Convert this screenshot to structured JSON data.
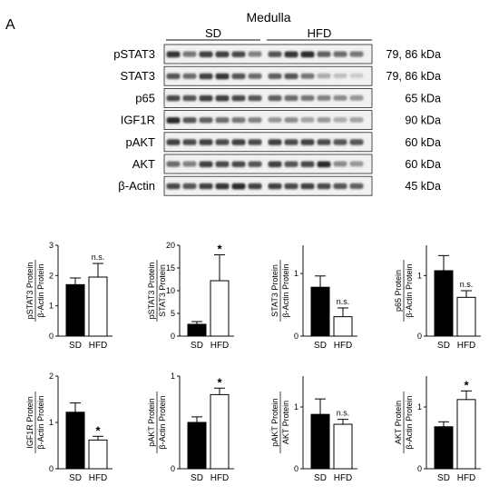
{
  "panel_label": "A",
  "blot": {
    "title": "Medulla",
    "groups": [
      "SD",
      "HFD"
    ],
    "rows": [
      {
        "protein": "pSTAT3",
        "kda": "79, 86 kDa",
        "sd": [
          0.85,
          0.55,
          0.8,
          0.8,
          0.75,
          0.5
        ],
        "hfd": [
          0.7,
          0.85,
          0.9,
          0.65,
          0.6,
          0.55
        ]
      },
      {
        "protein": "STAT3",
        "kda": "79, 86 kDa",
        "sd": [
          0.7,
          0.6,
          0.8,
          0.85,
          0.7,
          0.6
        ],
        "hfd": [
          0.65,
          0.7,
          0.55,
          0.3,
          0.2,
          0.15
        ]
      },
      {
        "protein": "p65",
        "kda": "65 kDa",
        "sd": [
          0.75,
          0.7,
          0.8,
          0.8,
          0.75,
          0.7
        ],
        "hfd": [
          0.65,
          0.6,
          0.55,
          0.5,
          0.45,
          0.4
        ]
      },
      {
        "protein": "IGF1R",
        "kda": "90 kDa",
        "sd": [
          0.9,
          0.7,
          0.65,
          0.6,
          0.55,
          0.5
        ],
        "hfd": [
          0.4,
          0.45,
          0.35,
          0.4,
          0.3,
          0.35
        ]
      },
      {
        "protein": "pAKT",
        "kda": "60 kDa",
        "sd": [
          0.8,
          0.75,
          0.8,
          0.75,
          0.8,
          0.75
        ],
        "hfd": [
          0.8,
          0.75,
          0.8,
          0.75,
          0.7,
          0.7
        ]
      },
      {
        "protein": "AKT",
        "kda": "60 kDa",
        "sd": [
          0.6,
          0.5,
          0.8,
          0.75,
          0.75,
          0.7
        ],
        "hfd": [
          0.8,
          0.7,
          0.75,
          0.9,
          0.45,
          0.4
        ]
      },
      {
        "protein": "β-Actin",
        "kda": "45 kDa",
        "sd": [
          0.75,
          0.7,
          0.8,
          0.85,
          0.9,
          0.8
        ],
        "hfd": [
          0.8,
          0.75,
          0.8,
          0.75,
          0.7,
          0.65
        ]
      }
    ]
  },
  "chart_data": [
    {
      "type": "bar",
      "ylabel_top": "pSTAT3 Protein",
      "ylabel_bottom": "β-Actin Protein",
      "categories": [
        "SD",
        "HFD"
      ],
      "values": [
        1.7,
        1.95
      ],
      "errors": [
        0.22,
        0.45
      ],
      "ylim": [
        0,
        3
      ],
      "yticks": [
        0,
        1,
        2,
        3
      ],
      "annotations": [
        "",
        "n.s."
      ]
    },
    {
      "type": "bar",
      "ylabel_top": "pSTAT3 Protein",
      "ylabel_bottom": "STAT3 Protein",
      "categories": [
        "SD",
        "HFD"
      ],
      "values": [
        2.6,
        12.2
      ],
      "errors": [
        0.6,
        5.7
      ],
      "ylim": [
        0,
        20
      ],
      "yticks": [
        0,
        5,
        10,
        15,
        20
      ],
      "annotations": [
        "",
        "*"
      ]
    },
    {
      "type": "bar",
      "ylabel_top": "STAT3 Protein",
      "ylabel_bottom": "β-Actin Protein",
      "categories": [
        "SD",
        "HFD"
      ],
      "values": [
        0.78,
        0.31
      ],
      "errors": [
        0.18,
        0.14
      ],
      "ylim": [
        0,
        1.45
      ],
      "yticks": [
        0,
        1
      ],
      "annotations": [
        "",
        "n.s."
      ]
    },
    {
      "type": "bar",
      "ylabel_top": "p65 Protein",
      "ylabel_bottom": "β-Actin Protein",
      "categories": [
        "SD",
        "HFD"
      ],
      "values": [
        1.08,
        0.64
      ],
      "errors": [
        0.25,
        0.11
      ],
      "ylim": [
        0,
        1.5
      ],
      "yticks": [
        0,
        1
      ],
      "annotations": [
        "",
        "n.s."
      ]
    },
    {
      "type": "bar",
      "ylabel_top": "IGF1R Protein",
      "ylabel_bottom": "β-Actin Protein",
      "categories": [
        "SD",
        "HFD"
      ],
      "values": [
        1.22,
        0.62
      ],
      "errors": [
        0.2,
        0.08
      ],
      "ylim": [
        0,
        2
      ],
      "yticks": [
        0,
        1,
        2
      ],
      "annotations": [
        "",
        "*"
      ]
    },
    {
      "type": "bar",
      "ylabel_top": "pAKT Protein",
      "ylabel_bottom": "β-Actin Protein",
      "categories": [
        "SD",
        "HFD"
      ],
      "values": [
        0.5,
        0.8
      ],
      "errors": [
        0.06,
        0.07
      ],
      "ylim": [
        0,
        1
      ],
      "yticks": [
        0,
        1
      ],
      "annotations": [
        "",
        "*"
      ]
    },
    {
      "type": "bar",
      "ylabel_top": "pAKT Protein",
      "ylabel_bottom": "AKT Protein",
      "categories": [
        "SD",
        "HFD"
      ],
      "values": [
        0.88,
        0.72
      ],
      "errors": [
        0.25,
        0.08
      ],
      "ylim": [
        0,
        1.5
      ],
      "yticks": [
        0,
        1
      ],
      "annotations": [
        "",
        "n.s."
      ]
    },
    {
      "type": "bar",
      "ylabel_top": "AKT Protein",
      "ylabel_bottom": "β-Actin Protein",
      "categories": [
        "SD",
        "HFD"
      ],
      "values": [
        0.68,
        1.12
      ],
      "errors": [
        0.08,
        0.14
      ],
      "ylim": [
        0,
        1.5
      ],
      "yticks": [
        0,
        1
      ],
      "annotations": [
        "",
        "*"
      ]
    }
  ]
}
